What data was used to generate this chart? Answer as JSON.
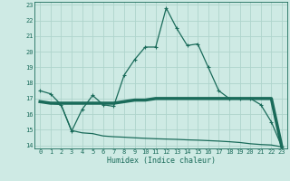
{
  "xlabel": "Humidex (Indice chaleur)",
  "background_color": "#ceeae4",
  "grid_color": "#aed4cc",
  "line_color": "#1a6b5a",
  "xlim": [
    -0.5,
    23.5
  ],
  "ylim": [
    13.8,
    23.2
  ],
  "xticks": [
    0,
    1,
    2,
    3,
    4,
    5,
    6,
    7,
    8,
    9,
    10,
    11,
    12,
    13,
    14,
    15,
    16,
    17,
    18,
    19,
    20,
    21,
    22,
    23
  ],
  "yticks": [
    14,
    15,
    16,
    17,
    18,
    19,
    20,
    21,
    22,
    23
  ],
  "curve1_x": [
    0,
    1,
    2,
    3,
    4,
    5,
    6,
    7,
    8,
    9,
    10,
    11,
    12,
    13,
    14,
    15,
    16,
    17,
    18,
    19,
    20,
    21,
    22,
    23
  ],
  "curve1_y": [
    17.5,
    17.3,
    16.6,
    14.9,
    16.3,
    17.2,
    16.6,
    16.5,
    18.5,
    19.5,
    20.3,
    20.3,
    22.8,
    21.5,
    20.4,
    20.5,
    19.0,
    17.5,
    17.0,
    17.0,
    17.0,
    16.6,
    15.5,
    13.9
  ],
  "curve2_x": [
    0,
    1,
    2,
    3,
    4,
    5,
    6,
    7,
    8,
    9,
    10,
    11,
    12,
    13,
    14,
    15,
    16,
    17,
    18,
    19,
    20,
    21,
    22,
    23
  ],
  "curve2_y": [
    16.8,
    16.7,
    16.7,
    16.7,
    16.7,
    16.7,
    16.7,
    16.7,
    16.8,
    16.9,
    16.9,
    17.0,
    17.0,
    17.0,
    17.0,
    17.0,
    17.0,
    17.0,
    17.0,
    17.0,
    17.0,
    17.0,
    17.0,
    13.9
  ],
  "curve3_x": [
    0,
    1,
    2,
    3,
    4,
    5,
    6,
    7,
    8,
    9,
    10,
    11,
    12,
    13,
    14,
    15,
    16,
    17,
    18,
    19,
    20,
    21,
    22,
    23
  ],
  "curve3_y": [
    16.8,
    16.7,
    16.6,
    14.95,
    14.8,
    14.75,
    14.6,
    14.55,
    14.52,
    14.48,
    14.45,
    14.42,
    14.4,
    14.38,
    14.35,
    14.33,
    14.3,
    14.27,
    14.23,
    14.18,
    14.1,
    14.05,
    14.02,
    13.9
  ]
}
